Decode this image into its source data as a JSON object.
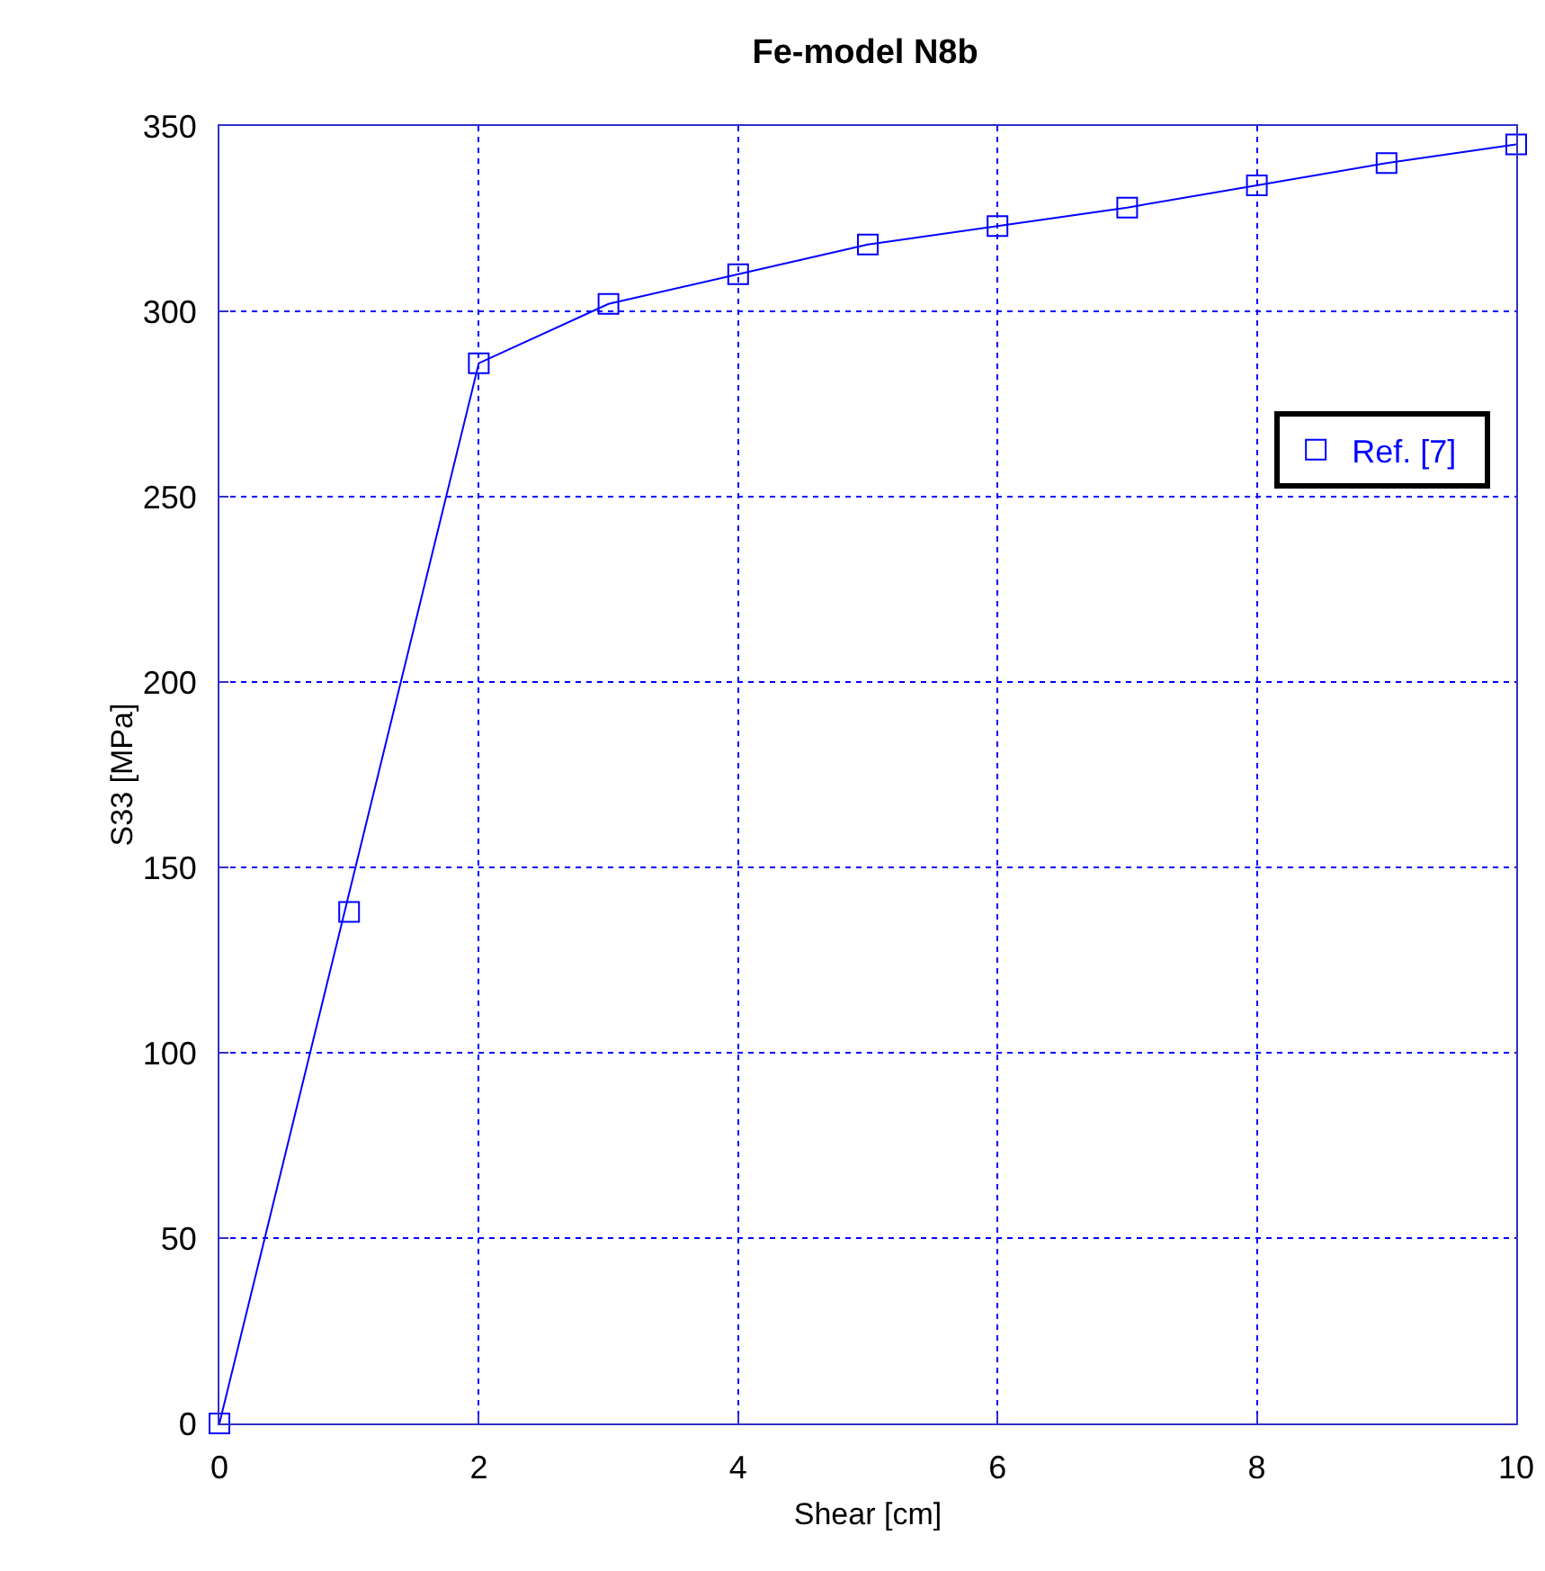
{
  "chart_data": {
    "type": "line",
    "title": "Fe-model N8b",
    "xlabel": "Shear [cm]",
    "ylabel": "S33 [MPa]",
    "xlim": [
      0,
      10
    ],
    "xticks": [
      0,
      2,
      4,
      6,
      8,
      10
    ],
    "ylim": [
      0,
      350
    ],
    "yticks": [
      0,
      50,
      100,
      150,
      200,
      250,
      300,
      350
    ],
    "grid": true,
    "legend": "top right",
    "series": [
      {
        "type": "line",
        "color": "#0000ff",
        "marker": "none",
        "line_style": "solid",
        "x": [
          0,
          2,
          3,
          4,
          5,
          6,
          7,
          8,
          9,
          10
        ],
        "values": [
          0,
          286,
          302,
          310,
          318,
          323,
          328,
          334,
          340,
          345
        ]
      },
      {
        "type": "scatter",
        "name": "Ref. [7]",
        "color": "#0000ff",
        "marker": "square",
        "x": [
          0,
          1,
          2,
          3,
          4,
          5,
          6,
          7,
          8,
          9,
          10
        ],
        "values": [
          0,
          138,
          286,
          302,
          310,
          318,
          323,
          328,
          334,
          340,
          345
        ]
      }
    ]
  }
}
